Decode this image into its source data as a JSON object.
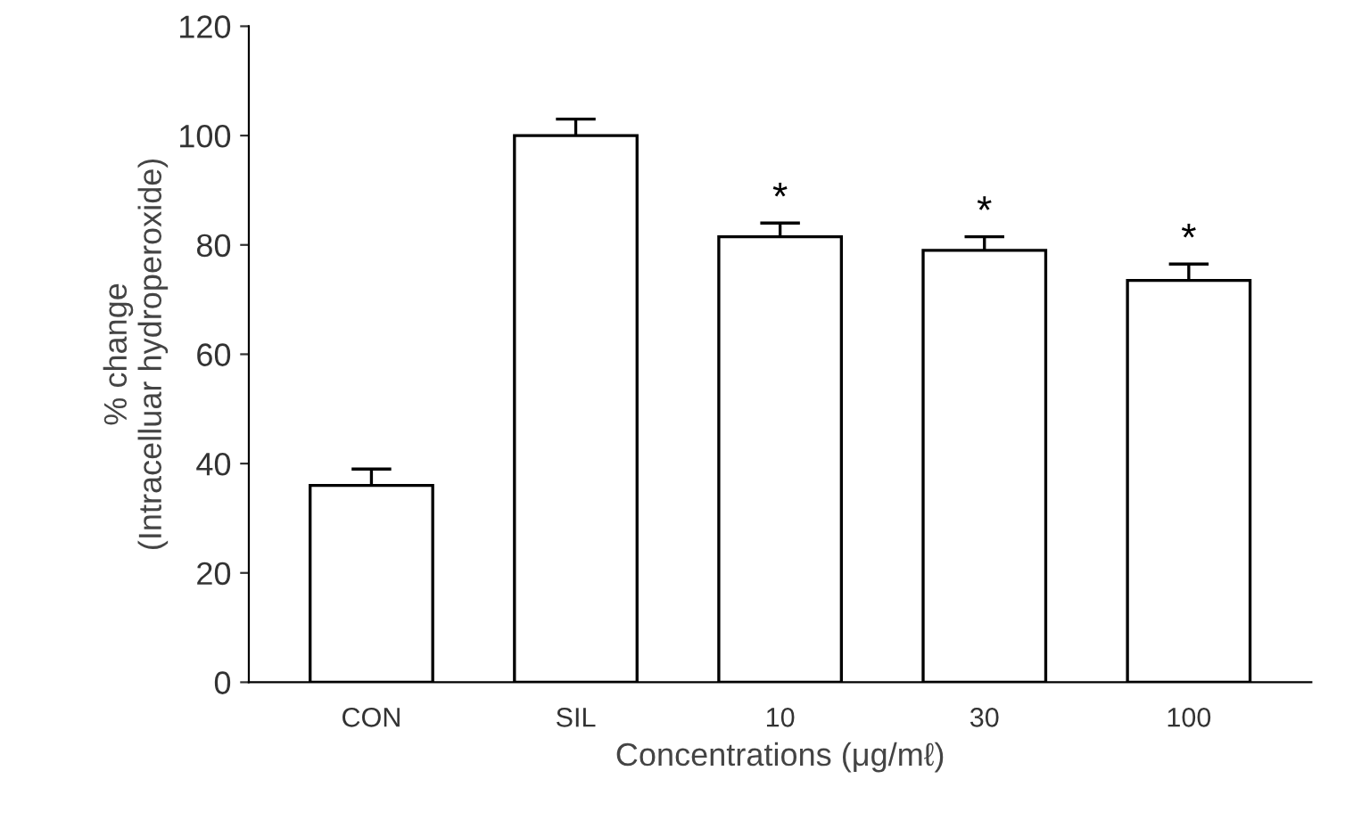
{
  "chart_data": {
    "type": "bar",
    "ylabel": "% change\n(Intracelluar hydroperoxide)",
    "xlabel": "Concentrations (μg/mℓ)",
    "categories": [
      "CON",
      "SIL",
      "10",
      "30",
      "100"
    ],
    "values": [
      36,
      100,
      81.5,
      79,
      73.5
    ],
    "errors": [
      3,
      3,
      2.5,
      2.5,
      3
    ],
    "color": "#ffffff",
    "ylim": [
      0,
      120
    ],
    "yticks": [
      0,
      20,
      40,
      60,
      80,
      100,
      120
    ],
    "grid": false,
    "legend": false,
    "annotations": [
      "*",
      "*",
      "*"
    ]
  }
}
